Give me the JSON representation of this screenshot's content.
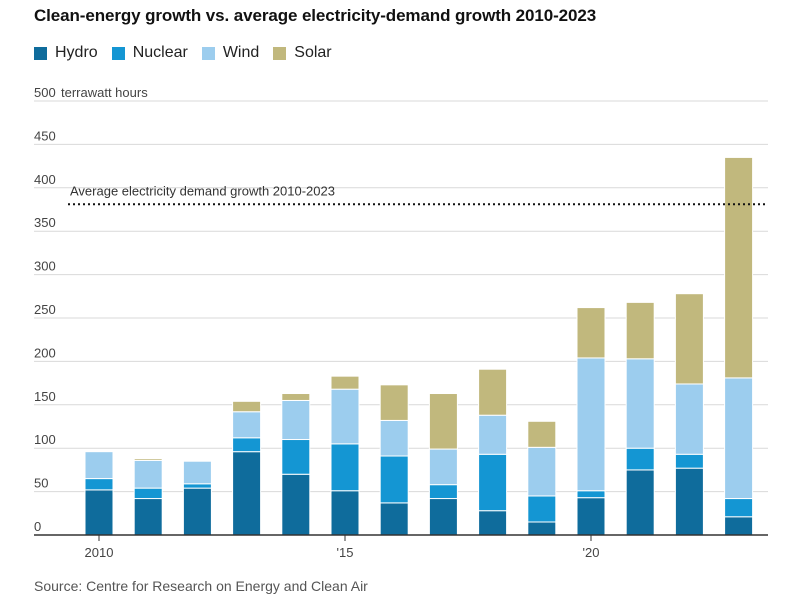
{
  "title": "Clean-energy growth vs. average electricity-demand growth 2010-2023",
  "source": "Source: Centre for Research on Energy and Clean Air",
  "colors": {
    "hydro": "#0f6c9c",
    "nuclear": "#1496d3",
    "wind": "#9ccdee",
    "solar": "#c1b87d",
    "grid": "#d9d9d9",
    "axis": "#333333"
  },
  "chart_data": {
    "type": "bar",
    "stacked": true,
    "title": "Clean-energy growth vs. average electricity-demand growth 2010-2023",
    "ylabel": "terrawatt hours",
    "ylim": [
      0,
      500
    ],
    "yticks": [
      0,
      50,
      100,
      150,
      200,
      250,
      300,
      350,
      400,
      450,
      500
    ],
    "grid": true,
    "legend": "top-left",
    "categories": [
      "2010",
      "2011",
      "2012",
      "2013",
      "2014",
      "2015",
      "2016",
      "2017",
      "2018",
      "2019",
      "2020",
      "2021",
      "2022",
      "2023"
    ],
    "x_tick_labels": [
      {
        "category": "2010",
        "label": "2010"
      },
      {
        "category": "2015",
        "label": "'15"
      },
      {
        "category": "2020",
        "label": "'20"
      }
    ],
    "series": [
      {
        "name": "Hydro",
        "key": "hydro",
        "values": [
          52,
          42,
          54,
          96,
          70,
          51,
          37,
          42,
          28,
          15,
          43,
          75,
          77,
          21
        ]
      },
      {
        "name": "Nuclear",
        "key": "nuclear",
        "values": [
          13,
          12,
          5,
          16,
          40,
          54,
          54,
          16,
          65,
          30,
          8,
          25,
          16,
          21
        ]
      },
      {
        "name": "Wind",
        "key": "wind",
        "values": [
          31,
          32,
          26,
          30,
          45,
          63,
          41,
          41,
          45,
          56,
          153,
          103,
          81,
          139
        ]
      },
      {
        "name": "Solar",
        "key": "solar",
        "values": [
          0,
          2,
          0,
          12,
          8,
          15,
          41,
          64,
          53,
          30,
          58,
          65,
          104,
          254
        ]
      }
    ],
    "reference_line": {
      "label": "Average electricity demand growth 2010-2023",
      "value": 381
    }
  }
}
